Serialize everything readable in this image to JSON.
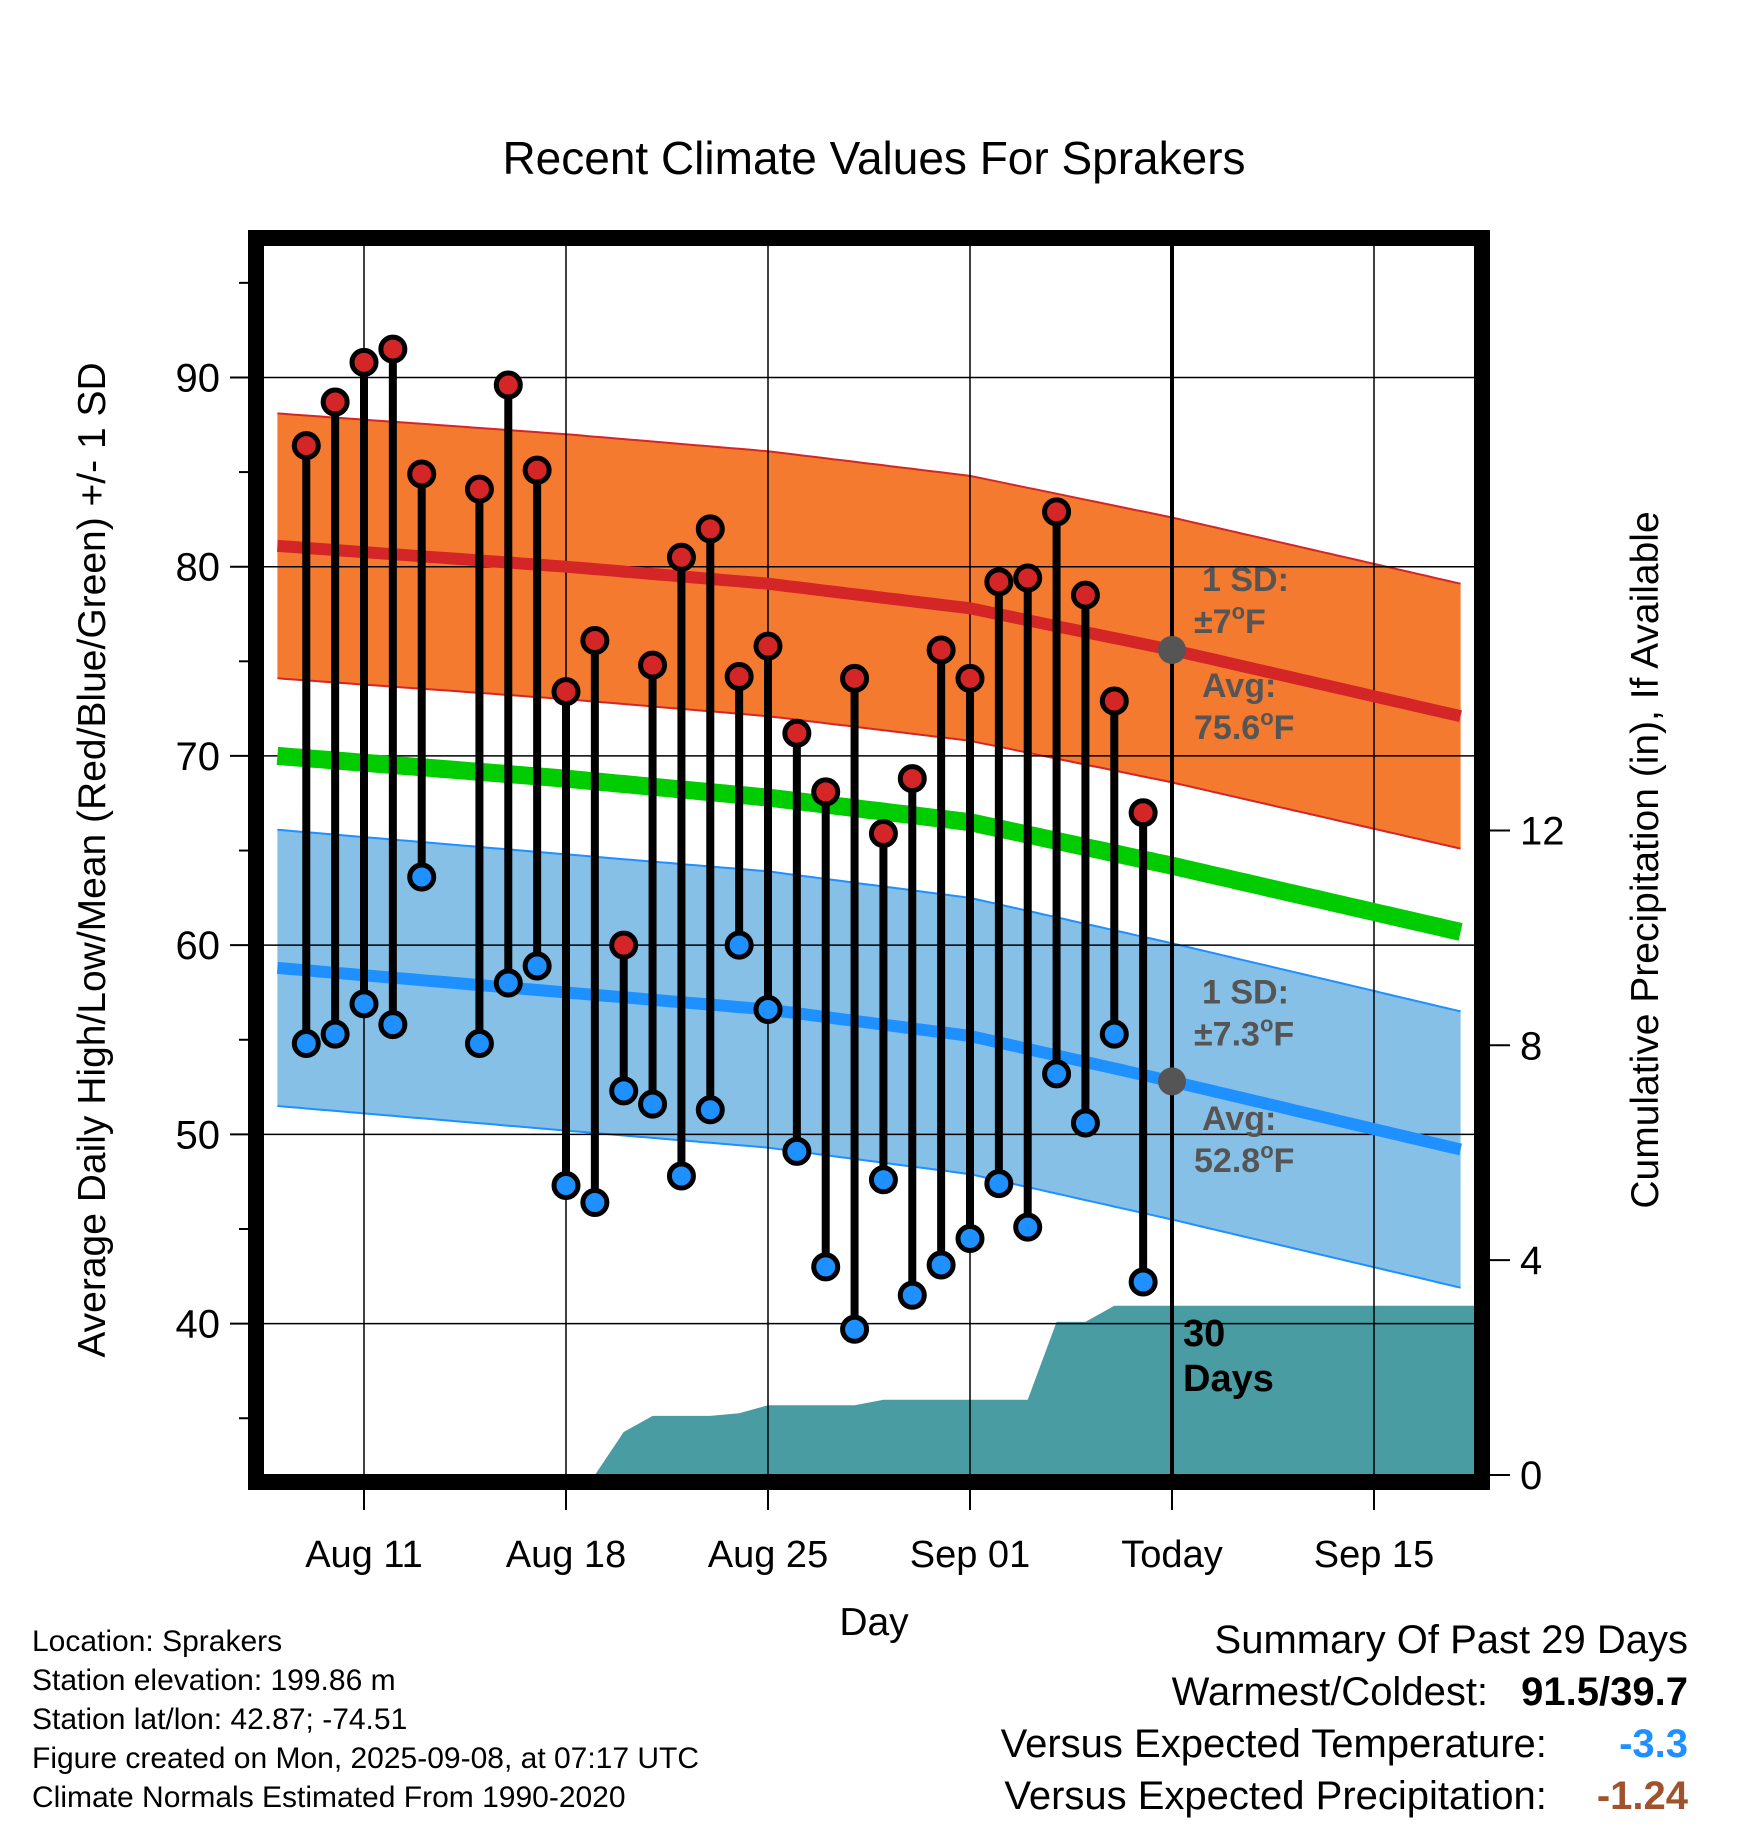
{
  "chart_data": {
    "type": "line",
    "title": "Recent Climate Values For Sprakers",
    "xlabel": "Day",
    "ylabel": "Average Daily High/Low/Mean (Red/Blue/Green) +/- 1 SD",
    "y2label": "Cumulative Precipitation (in), If Available",
    "xlim": [
      -3.5,
      38.5
    ],
    "ylim": [
      32,
      97
    ],
    "y2lim": [
      0,
      22.9
    ],
    "x_tick_values": [
      0,
      7,
      14,
      21,
      28,
      35
    ],
    "x_tick_labels": [
      "Aug 11",
      "Aug 18",
      "Aug 25",
      "Sep 01",
      "Today",
      "Sep 15"
    ],
    "y_tick_values": [
      40,
      50,
      60,
      70,
      80,
      90
    ],
    "y2_tick_values": [
      0,
      4,
      8,
      12
    ],
    "today_x": 28,
    "grid": true,
    "normals": {
      "x": [
        -3,
        7,
        14,
        21,
        28,
        38
      ],
      "high_avg": [
        81.1,
        80.0,
        79.1,
        77.8,
        75.6,
        72.1
      ],
      "high_sd": 7,
      "low_avg": [
        58.8,
        57.5,
        56.6,
        55.2,
        52.8,
        49.2
      ],
      "low_sd": 7.3,
      "mean_avg": [
        70.0,
        68.8,
        67.8,
        66.5,
        64.2,
        60.7
      ]
    },
    "observed": {
      "x": [
        -2,
        -1,
        0,
        1,
        2,
        4,
        5,
        6,
        7,
        8,
        9,
        10,
        11,
        12,
        13,
        14,
        15,
        16,
        17,
        18,
        19,
        20,
        21,
        22,
        23,
        24,
        25,
        26,
        27
      ],
      "high": [
        86.4,
        88.7,
        90.8,
        91.5,
        84.9,
        84.1,
        89.6,
        85.1,
        73.4,
        76.1,
        60.0,
        74.8,
        80.5,
        82.0,
        74.2,
        75.8,
        71.2,
        68.1,
        74.1,
        65.9,
        68.8,
        75.6,
        74.1,
        79.2,
        79.4,
        82.9,
        78.5,
        72.9,
        67.0
      ],
      "low": [
        54.8,
        55.3,
        56.9,
        55.8,
        63.6,
        54.8,
        58.0,
        58.9,
        47.3,
        46.4,
        52.3,
        51.6,
        47.8,
        51.3,
        60.0,
        56.6,
        49.1,
        43.0,
        39.7,
        47.6,
        41.5,
        43.1,
        44.5,
        47.4,
        45.1,
        53.2,
        50.6,
        55.3,
        42.2
      ]
    },
    "precip": {
      "x": [
        7,
        8,
        9,
        10,
        11,
        12,
        13,
        14,
        15,
        16,
        17,
        18,
        19,
        20,
        21,
        22,
        23,
        24,
        25,
        26,
        27,
        28,
        38.5
      ],
      "values": [
        0,
        0,
        0.8,
        1.1,
        1.1,
        1.1,
        1.15,
        1.3,
        1.3,
        1.3,
        1.3,
        1.4,
        1.4,
        1.4,
        1.4,
        1.4,
        1.4,
        2.85,
        2.85,
        3.15,
        3.15,
        3.15,
        3.15
      ]
    },
    "annotations": {
      "high_sd": [
        "1 SD:",
        "±7",
        "o",
        "F"
      ],
      "high_avg": [
        "Avg:",
        "75.6",
        "o",
        "F"
      ],
      "low_sd": [
        "1 SD:",
        "±7.3",
        "o",
        "F"
      ],
      "low_avg": [
        "Avg:",
        "52.8",
        "o",
        "F"
      ],
      "precip_window": [
        "30",
        "Days"
      ]
    },
    "colors": {
      "high_band": "#f47a30",
      "high_line": "#d42626",
      "low_band": "#86c0e6",
      "low_line": "#1e90ff",
      "mean_line": "#00cc00",
      "precip": "#4a9ca3",
      "annotation": "#555555"
    }
  },
  "info": {
    "location": "Location: Sprakers",
    "elevation": "Station elevation: 199.86 m",
    "latlon": "Station lat/lon: 42.87; -74.51",
    "created": "Figure created on Mon, 2025-09-08, at 07:17 UTC",
    "normals": "Climate Normals Estimated From 1990-2020"
  },
  "summary": {
    "title": "Summary Of Past 29 Days",
    "warm_cold_label": "Warmest/Coldest:",
    "warm_cold_value": "91.5/39.7",
    "temp_label": "Versus Expected Temperature:",
    "temp_value": "-3.3",
    "temp_color": "#1e90ff",
    "precip_label": "Versus Expected Precipitation:",
    "precip_value": "-1.24",
    "precip_color": "#a0522d"
  }
}
